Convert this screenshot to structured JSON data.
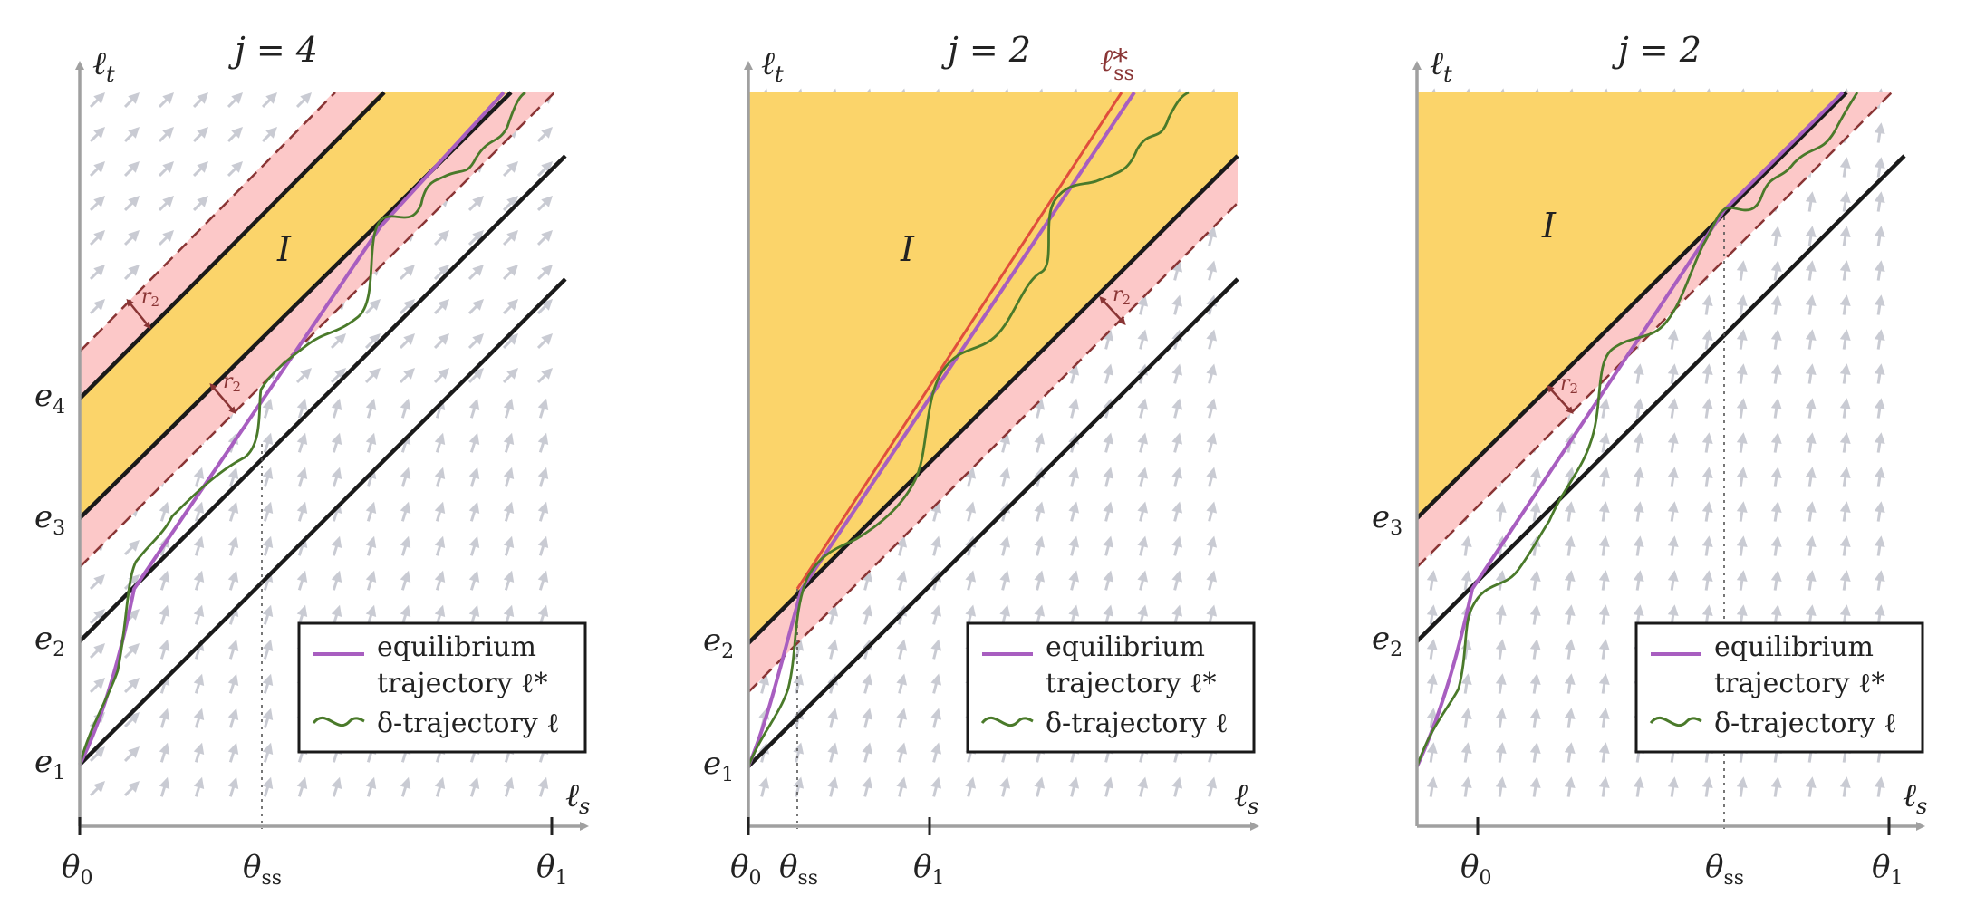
{
  "panels": [
    {
      "title": "j = 4",
      "y_axis_label": "ℓ",
      "y_axis_sub": "t",
      "x_axis_label": "ℓ",
      "x_axis_sub": "s",
      "region_label": "I",
      "offset_labels": [
        "r",
        "r"
      ],
      "offset_sub": "2",
      "y_ticks": [
        {
          "main": "e",
          "sub": "4"
        },
        {
          "main": "e",
          "sub": "3"
        },
        {
          "main": "e",
          "sub": "2"
        },
        {
          "main": "e",
          "sub": "1"
        }
      ],
      "x_ticks": [
        {
          "main": "θ",
          "sub": "0"
        },
        {
          "main": "θ",
          "sub": "ss"
        },
        {
          "main": "θ",
          "sub": "1"
        }
      ],
      "legend": {
        "line1": "equilibrium",
        "line2": "trajectory ℓ*",
        "line3": "δ-trajectory ℓ"
      }
    },
    {
      "title": "j = 2",
      "curve_label": "ℓ*",
      "curve_label_sub": "ss",
      "y_axis_label": "ℓ",
      "y_axis_sub": "t",
      "x_axis_label": "ℓ",
      "x_axis_sub": "s",
      "region_label": "I",
      "offset_labels": [
        "r"
      ],
      "offset_sub": "2",
      "y_ticks": [
        {
          "main": "e",
          "sub": "2"
        },
        {
          "main": "e",
          "sub": "1"
        }
      ],
      "x_ticks": [
        {
          "main": "θ",
          "sub": "0"
        },
        {
          "main": "θ",
          "sub": "ss"
        },
        {
          "main": "θ",
          "sub": "1"
        }
      ],
      "legend": {
        "line1": "equilibrium",
        "line2": "trajectory ℓ*",
        "line3": "δ-trajectory ℓ"
      }
    },
    {
      "title": "j = 2",
      "y_axis_label": "ℓ",
      "y_axis_sub": "t",
      "x_axis_label": "ℓ",
      "x_axis_sub": "s",
      "region_label": "I",
      "offset_labels": [
        "r"
      ],
      "offset_sub": "2",
      "y_ticks": [
        {
          "main": "e",
          "sub": "3"
        },
        {
          "main": "e",
          "sub": "2"
        }
      ],
      "x_ticks": [
        {
          "main": "θ",
          "sub": "0"
        },
        {
          "main": "θ",
          "sub": "ss"
        },
        {
          "main": "θ",
          "sub": "1"
        }
      ],
      "legend": {
        "line1": "equilibrium",
        "line2": "trajectory ℓ*",
        "line3": "δ-trajectory ℓ"
      }
    }
  ],
  "colors": {
    "axis": "#a0a0a0",
    "region_yellow": "#fbd46a",
    "band_pink": "#fcc8c8",
    "boundary": "#1a1a1a",
    "dashed": "#8a3535",
    "equilibrium": "#a85ec0",
    "delta": "#4a7a2a",
    "steady_state": "#e04e3c",
    "arrows": "#c9cbd3"
  }
}
